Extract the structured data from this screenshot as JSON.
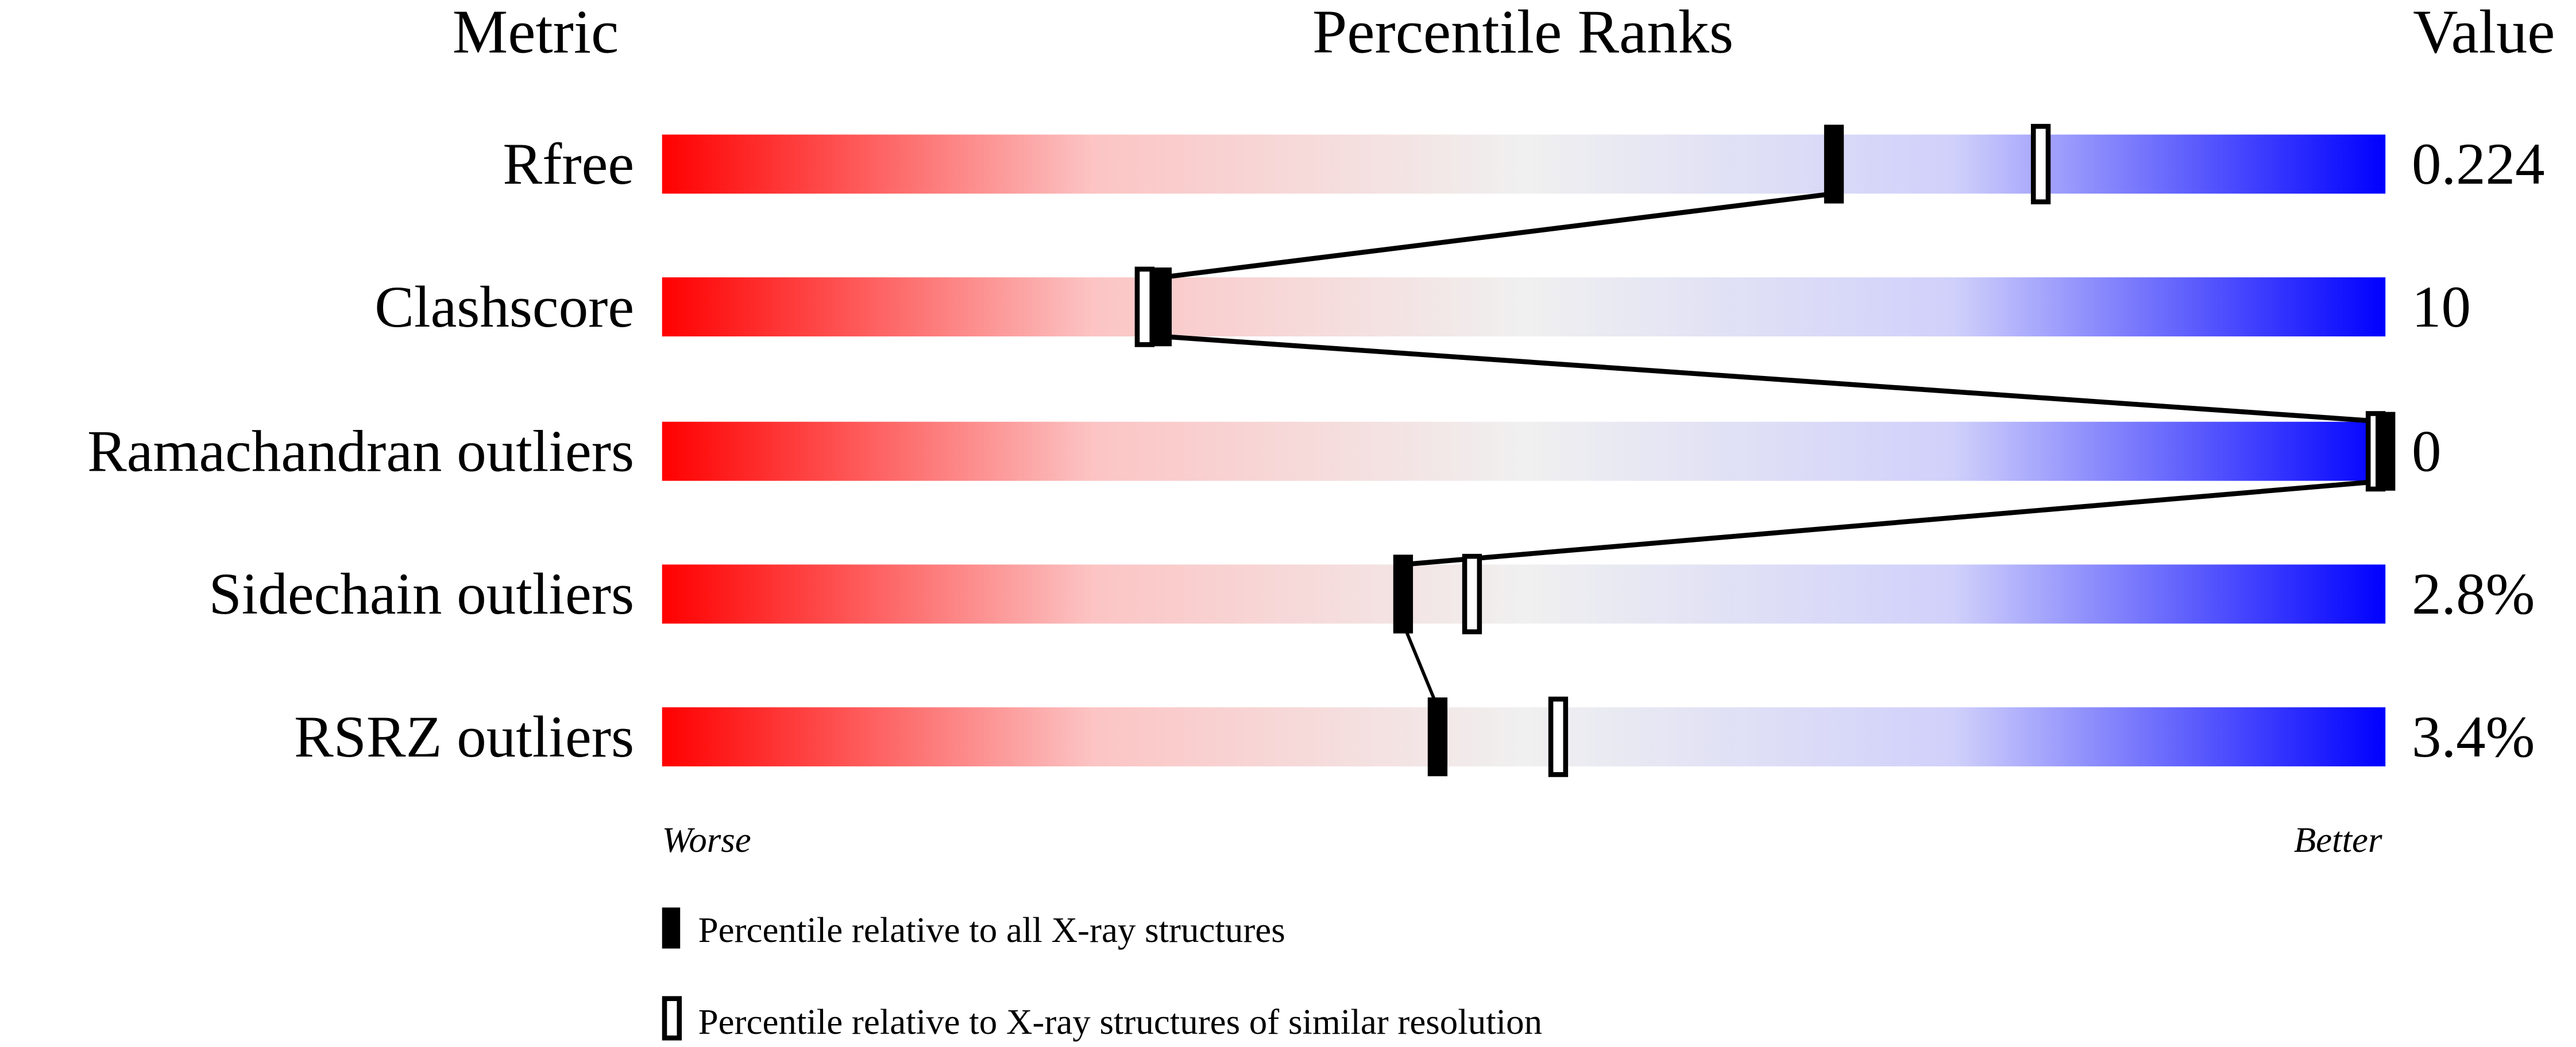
{
  "chart_data": {
    "type": "percentile-ranks",
    "headers": {
      "metric": "Metric",
      "ranks": "Percentile Ranks",
      "value": "Value"
    },
    "xlim": [
      0,
      100
    ],
    "axis_ends": {
      "left": "Worse",
      "right": "Better"
    },
    "gradient_colors": {
      "worse": "#ff0000",
      "middle": "#f0f0f0",
      "better": "#0000ff"
    },
    "metrics": [
      {
        "name": "Rfree",
        "value": "0.224",
        "percentile_all": 68,
        "percentile_similar": 80
      },
      {
        "name": "Clashscore",
        "value": "10",
        "percentile_all": 29,
        "percentile_similar": 28
      },
      {
        "name": "Ramachandran outliers",
        "value": "0",
        "percentile_all": 100,
        "percentile_similar": 100
      },
      {
        "name": "Sidechain outliers",
        "value": "2.8%",
        "percentile_all": 43,
        "percentile_similar": 47
      },
      {
        "name": "RSRZ outliers",
        "value": "3.4%",
        "percentile_all": 45,
        "percentile_similar": 52
      }
    ],
    "legend": [
      {
        "marker": "filled",
        "label": "Percentile relative to all X-ray structures"
      },
      {
        "marker": "open",
        "label": "Percentile relative to X-ray structures of similar resolution"
      }
    ]
  }
}
